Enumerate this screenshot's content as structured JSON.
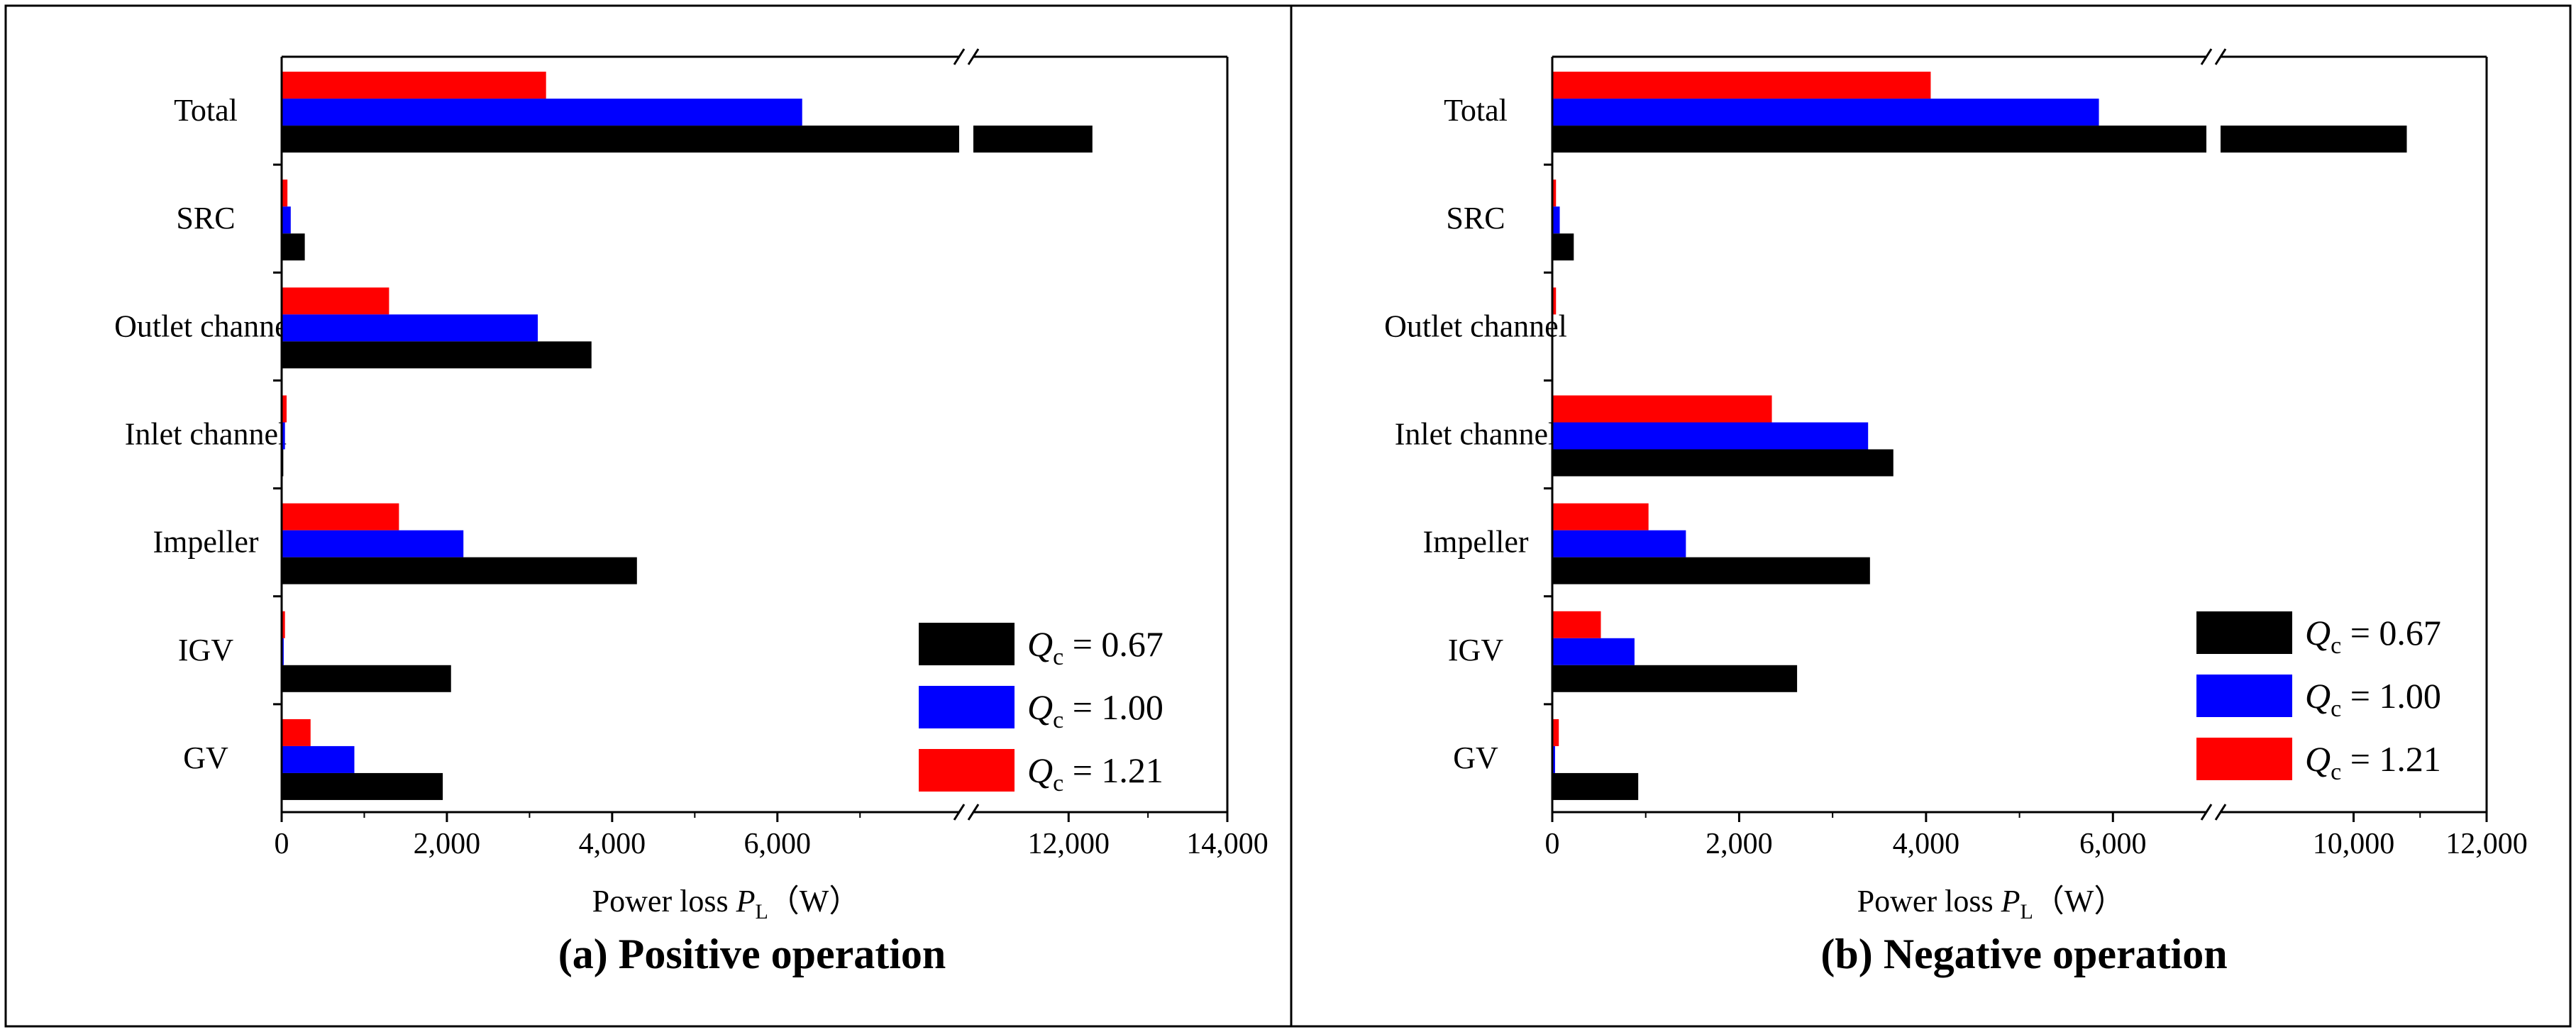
{
  "colors": {
    "q067": "#000000",
    "q100": "#0000ff",
    "q121": "#ff0000"
  },
  "chart_data": [
    {
      "type": "bar",
      "orientation": "horizontal",
      "panel": "a",
      "title": "(a) Positive operation",
      "xlabel_prefix": "Power loss ",
      "xlabel_var": "P",
      "xlabel_sub": "L",
      "xlabel_unit": "（W）",
      "categories": [
        "Total",
        "SRC",
        "Outlet channel",
        "Inlet channel",
        "Impeller",
        "IGV",
        "GV"
      ],
      "axis_break": {
        "from": 8200,
        "to": 10800
      },
      "xlim": [
        0,
        14000
      ],
      "xticks": [
        0,
        2000,
        4000,
        6000,
        12000,
        14000
      ],
      "xtick_labels": [
        "0",
        "2,000",
        "4,000",
        "6,000",
        "12,000",
        "14,000"
      ],
      "legend_position": "lower-right",
      "series": [
        {
          "name_var": "Q",
          "name_sub": "c",
          "name_value": " = 0.67",
          "color": "#000000",
          "values": [
            12300,
            280,
            3750,
            20,
            4300,
            2050,
            1950
          ]
        },
        {
          "name_var": "Q",
          "name_sub": "c",
          "name_value": " = 1.00",
          "color": "#0000ff",
          "values": [
            6300,
            110,
            3100,
            40,
            2200,
            25,
            880
          ]
        },
        {
          "name_var": "Q",
          "name_sub": "c",
          "name_value": " = 1.21",
          "color": "#ff0000",
          "values": [
            3200,
            70,
            1300,
            60,
            1420,
            40,
            350
          ]
        }
      ]
    },
    {
      "type": "bar",
      "orientation": "horizontal",
      "panel": "b",
      "title": "(b) Negative operation",
      "xlabel_prefix": "Power loss ",
      "xlabel_var": "P",
      "xlabel_sub": "L",
      "xlabel_unit": "（W）",
      "categories": [
        "Total",
        "SRC",
        "Outlet channel",
        "Inlet channel",
        "Impeller",
        "IGV",
        "GV"
      ],
      "axis_break": {
        "from": 7000,
        "to": 8000
      },
      "xlim": [
        0,
        12000
      ],
      "xticks": [
        0,
        2000,
        4000,
        6000,
        10000,
        12000
      ],
      "xtick_labels": [
        "0",
        "2,000",
        "4,000",
        "6,000",
        "10,000",
        "12,000"
      ],
      "legend_position": "lower-right",
      "series": [
        {
          "name_var": "Q",
          "name_sub": "c",
          "name_value": " = 0.67",
          "color": "#000000",
          "values": [
            10800,
            230,
            0,
            3650,
            3400,
            2620,
            920
          ]
        },
        {
          "name_var": "Q",
          "name_sub": "c",
          "name_value": " = 1.00",
          "color": "#0000ff",
          "values": [
            5850,
            80,
            0,
            3380,
            1430,
            880,
            30
          ]
        },
        {
          "name_var": "Q",
          "name_sub": "c",
          "name_value": " = 1.21",
          "color": "#ff0000",
          "values": [
            4050,
            40,
            40,
            2350,
            1030,
            520,
            70
          ]
        }
      ]
    }
  ]
}
